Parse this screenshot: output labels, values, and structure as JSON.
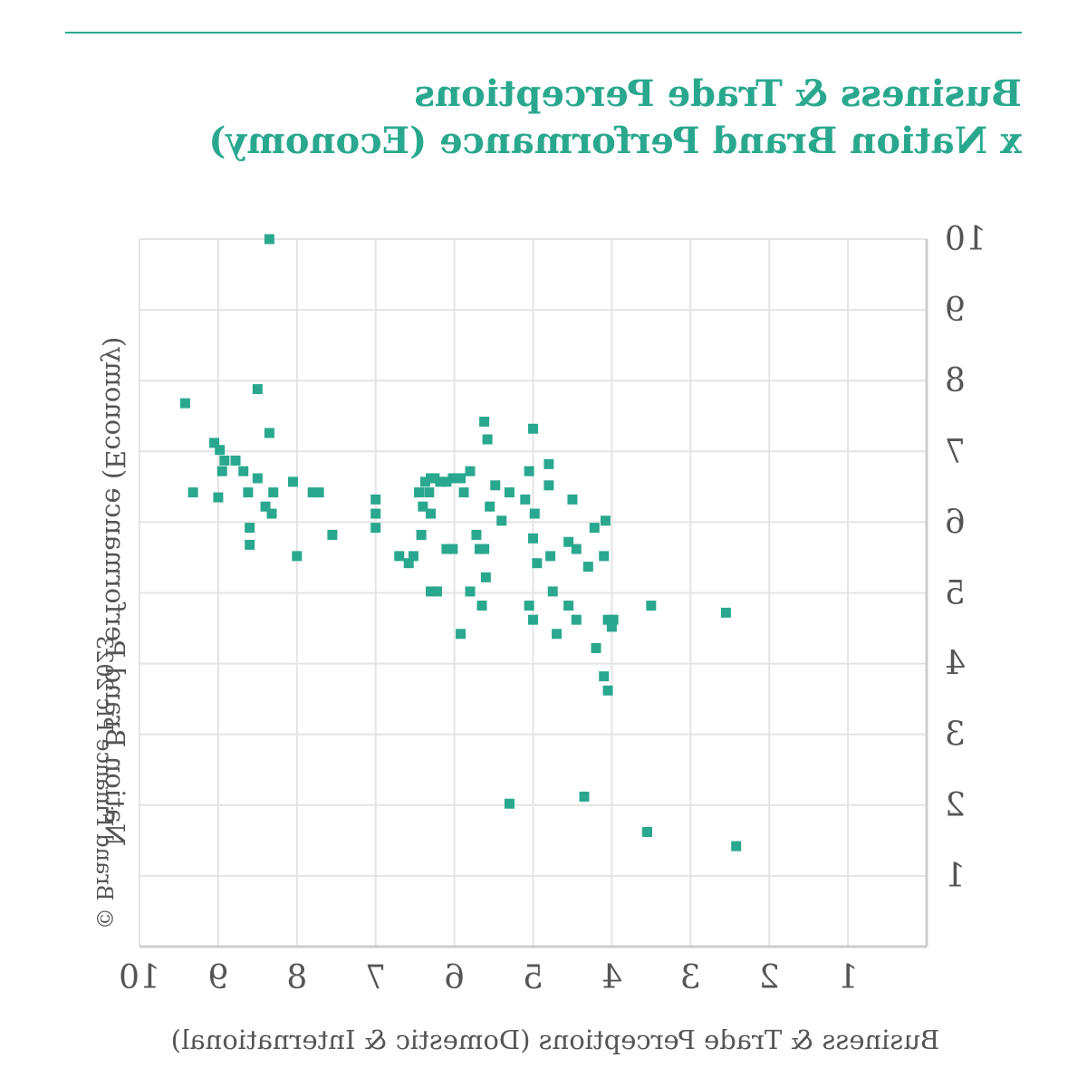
{
  "title_lines": [
    "Business & Trade Perceptions",
    "x Nation Brand Performance (Economy)"
  ],
  "copyright": "© Brand Finance Plc 2023",
  "colors": {
    "accent": "#2aa88f",
    "points": "#2aa88f",
    "grid": "#e4e4e4",
    "axis": "#cccccc",
    "text": "#555555"
  },
  "chart_data": {
    "type": "scatter",
    "title": "Business & Trade Perceptions x Nation Brand Performance (Economy)",
    "xlabel": "Business & Trade Perceptions (Domestic & International)",
    "ylabel": "Nation Brand Performance (Economy)",
    "xlim": [
      0,
      10
    ],
    "ylim": [
      0,
      10
    ],
    "xticks": [
      1,
      2,
      3,
      4,
      5,
      6,
      7,
      8,
      9,
      10
    ],
    "yticks": [
      1,
      2,
      3,
      4,
      5,
      6,
      7,
      8,
      9,
      10
    ],
    "grid": true,
    "marker": "square",
    "points": [
      [
        8.35,
        10.0
      ],
      [
        9.42,
        7.68
      ],
      [
        8.5,
        7.88
      ],
      [
        8.35,
        7.26
      ],
      [
        9.05,
        7.12
      ],
      [
        8.98,
        7.02
      ],
      [
        8.92,
        6.87
      ],
      [
        8.78,
        6.87
      ],
      [
        8.95,
        6.72
      ],
      [
        8.68,
        6.72
      ],
      [
        8.5,
        6.62
      ],
      [
        9.32,
        6.42
      ],
      [
        9.0,
        6.35
      ],
      [
        8.62,
        6.42
      ],
      [
        8.4,
        6.22
      ],
      [
        8.3,
        6.42
      ],
      [
        8.32,
        6.12
      ],
      [
        8.05,
        6.57
      ],
      [
        7.8,
        6.42
      ],
      [
        7.72,
        6.42
      ],
      [
        8.6,
        5.92
      ],
      [
        8.6,
        5.68
      ],
      [
        7.55,
        5.82
      ],
      [
        7.0,
        6.32
      ],
      [
        7.0,
        6.12
      ],
      [
        7.0,
        5.92
      ],
      [
        8.0,
        5.52
      ],
      [
        6.7,
        5.52
      ],
      [
        6.58,
        5.42
      ],
      [
        6.52,
        5.52
      ],
      [
        6.45,
        6.42
      ],
      [
        6.4,
        6.22
      ],
      [
        6.37,
        6.57
      ],
      [
        6.32,
        6.42
      ],
      [
        6.3,
        6.62
      ],
      [
        6.25,
        6.62
      ],
      [
        6.18,
        6.57
      ],
      [
        6.1,
        6.57
      ],
      [
        6.02,
        6.62
      ],
      [
        5.92,
        6.62
      ],
      [
        5.88,
        6.42
      ],
      [
        5.8,
        6.72
      ],
      [
        5.62,
        7.42
      ],
      [
        5.58,
        7.17
      ],
      [
        6.3,
        6.12
      ],
      [
        6.42,
        5.82
      ],
      [
        6.1,
        5.62
      ],
      [
        6.02,
        5.62
      ],
      [
        5.72,
        5.82
      ],
      [
        5.68,
        5.62
      ],
      [
        5.62,
        5.62
      ],
      [
        5.6,
        5.22
      ],
      [
        5.55,
        6.22
      ],
      [
        5.48,
        6.52
      ],
      [
        5.4,
        6.02
      ],
      [
        5.3,
        6.42
      ],
      [
        5.1,
        6.32
      ],
      [
        5.05,
        6.72
      ],
      [
        5.0,
        7.32
      ],
      [
        4.98,
        6.12
      ],
      [
        5.0,
        5.77
      ],
      [
        4.95,
        5.42
      ],
      [
        4.8,
        6.52
      ],
      [
        4.8,
        6.82
      ],
      [
        4.78,
        5.52
      ],
      [
        5.05,
        4.82
      ],
      [
        5.0,
        4.62
      ],
      [
        4.7,
        4.42
      ],
      [
        4.75,
        5.02
      ],
      [
        4.55,
        5.72
      ],
      [
        4.45,
        5.62
      ],
      [
        4.3,
        5.37
      ],
      [
        4.55,
        4.82
      ],
      [
        4.45,
        4.62
      ],
      [
        4.2,
        4.22
      ],
      [
        4.1,
        3.82
      ],
      [
        4.05,
        3.62
      ],
      [
        4.05,
        4.62
      ],
      [
        4.0,
        4.52
      ],
      [
        3.98,
        4.62
      ],
      [
        3.5,
        4.82
      ],
      [
        4.22,
        5.92
      ],
      [
        4.5,
        6.32
      ],
      [
        4.08,
        6.02
      ],
      [
        4.1,
        5.52
      ],
      [
        6.3,
        5.02
      ],
      [
        6.22,
        5.02
      ],
      [
        5.92,
        4.42
      ],
      [
        5.8,
        5.02
      ],
      [
        5.65,
        4.82
      ],
      [
        4.35,
        2.12
      ],
      [
        5.3,
        2.02
      ],
      [
        3.55,
        1.62
      ],
      [
        2.42,
        1.42
      ],
      [
        2.55,
        4.72
      ]
    ]
  }
}
